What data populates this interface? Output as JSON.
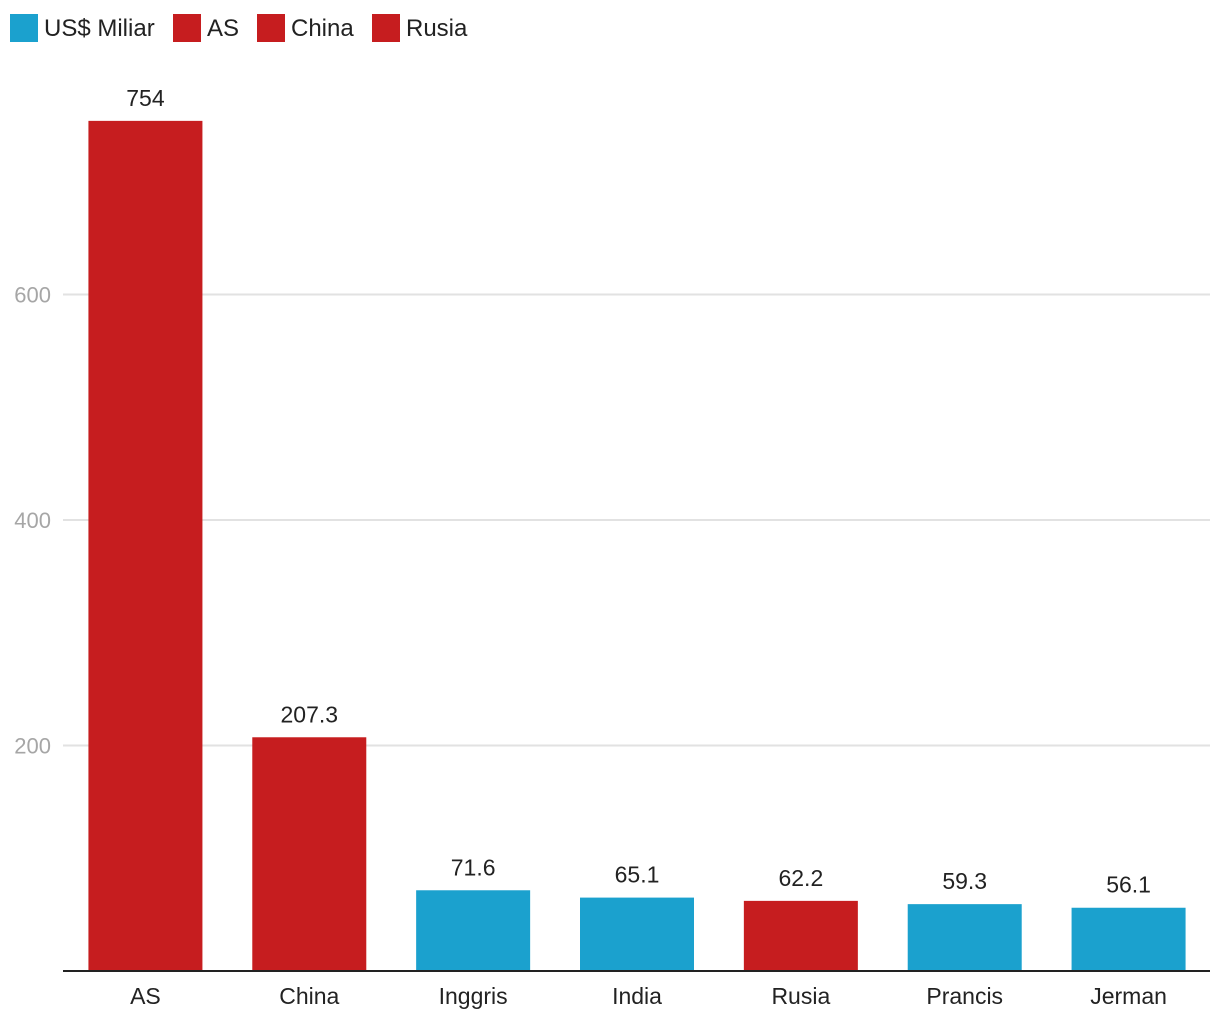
{
  "chart_data": {
    "type": "bar",
    "categories": [
      "AS",
      "China",
      "Inggris",
      "India",
      "Rusia",
      "Prancis",
      "Jerman"
    ],
    "values": [
      754,
      207.3,
      71.6,
      65.1,
      62.2,
      59.3,
      56.1
    ],
    "value_labels": [
      "754",
      "207.3",
      "71.6",
      "65.1",
      "62.2",
      "59.3",
      "56.1"
    ],
    "bar_colors": [
      "#c61d1f",
      "#c61d1f",
      "#1ba1ce",
      "#1ba1ce",
      "#c61d1f",
      "#1ba1ce",
      "#1ba1ce"
    ],
    "ylim": [
      0,
      800
    ],
    "yticks": [
      200,
      400,
      600
    ],
    "grid": true,
    "legend": {
      "placement": "top-left",
      "items": [
        {
          "label": "US$ Miliar",
          "color": "#1ba1ce"
        },
        {
          "label": "AS",
          "color": "#c61d1f"
        },
        {
          "label": "China",
          "color": "#c61d1f"
        },
        {
          "label": "Rusia",
          "color": "#c61d1f"
        }
      ]
    },
    "colors": {
      "axis": "#222222",
      "grid": "#e2e2e2",
      "tick_text": "#a6a6a6"
    }
  }
}
